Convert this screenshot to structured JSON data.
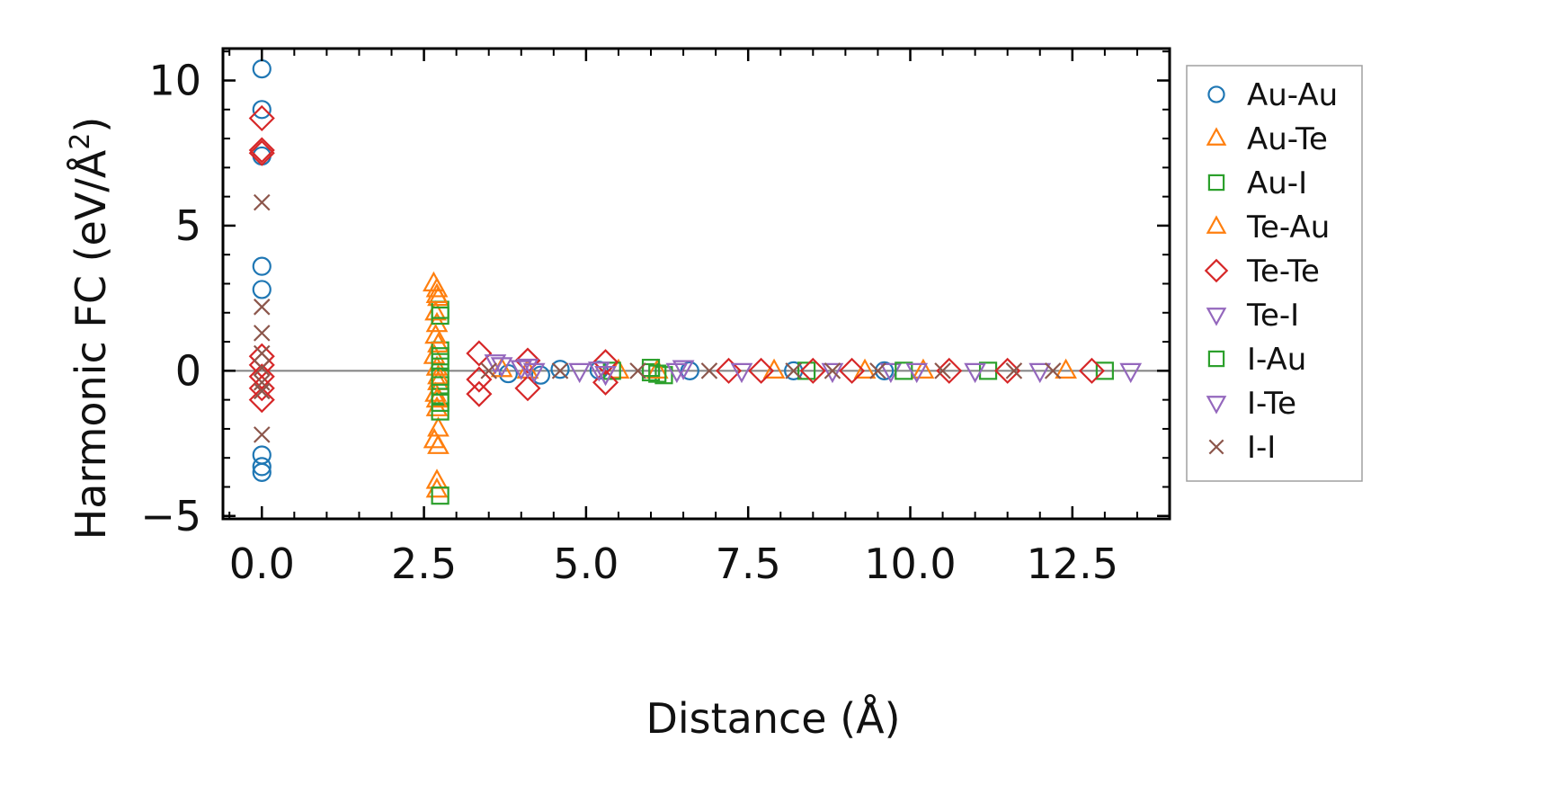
{
  "chart_data": {
    "type": "scatter",
    "xlabel": "Distance (Å)",
    "ylabel_main": "Harmonic FC (eV/Å",
    "ylabel_sup": "2",
    "ylabel_tail": ")",
    "xlim": [
      -0.6,
      14.0
    ],
    "ylim": [
      -5.1,
      11.1
    ],
    "xticks": [
      0.0,
      2.5,
      5.0,
      7.5,
      10.0,
      12.5
    ],
    "xtick_labels": [
      "0.0",
      "2.5",
      "5.0",
      "7.5",
      "10.0",
      "12.5"
    ],
    "yticks": [
      -5,
      0,
      5,
      10
    ],
    "ytick_labels": [
      "−5",
      "0",
      "5",
      "10"
    ],
    "zero_line": 0,
    "legend_position": "outside-right",
    "series": [
      {
        "name": "Au-Au",
        "marker": "circle",
        "color": "#1f77b4",
        "points": [
          [
            0,
            10.4
          ],
          [
            0,
            9.0
          ],
          [
            0,
            7.4
          ],
          [
            0,
            3.6
          ],
          [
            0,
            2.8
          ],
          [
            0,
            -2.9
          ],
          [
            0,
            -3.3
          ],
          [
            0,
            -3.5
          ],
          [
            3.8,
            -0.1
          ],
          [
            4.3,
            -0.15
          ],
          [
            4.6,
            0.05
          ],
          [
            5.2,
            0.02
          ],
          [
            6.6,
            0.0
          ],
          [
            8.2,
            0.0
          ],
          [
            9.6,
            0.0
          ]
        ]
      },
      {
        "name": "Au-Te",
        "marker": "triangle-up",
        "color": "#ff7f0e",
        "points": [
          [
            2.65,
            3.0
          ],
          [
            2.7,
            2.8
          ],
          [
            2.72,
            2.5
          ],
          [
            2.68,
            2.0
          ],
          [
            2.7,
            1.6
          ],
          [
            2.72,
            0.9
          ],
          [
            2.66,
            0.5
          ],
          [
            2.7,
            0.1
          ],
          [
            2.72,
            -0.4
          ],
          [
            2.68,
            -0.8
          ],
          [
            2.7,
            -1.3
          ],
          [
            2.72,
            -2.0
          ],
          [
            2.66,
            -2.4
          ],
          [
            2.7,
            -3.8
          ],
          [
            2.7,
            -4.1
          ],
          [
            4.1,
            0.0
          ],
          [
            5.5,
            0.0
          ],
          [
            7.9,
            0.0
          ],
          [
            9.3,
            0.0
          ],
          [
            12.4,
            0.0
          ]
        ]
      },
      {
        "name": "Au-I",
        "marker": "square",
        "color": "#2ca02c",
        "points": [
          [
            2.75,
            2.1
          ],
          [
            2.75,
            1.9
          ],
          [
            2.75,
            0.7
          ],
          [
            2.75,
            0.3
          ],
          [
            2.75,
            -0.5
          ],
          [
            2.75,
            -0.9
          ],
          [
            2.75,
            -1.4
          ],
          [
            2.75,
            -4.3
          ],
          [
            5.4,
            0.0
          ],
          [
            6.0,
            -0.05
          ],
          [
            6.2,
            -0.15
          ],
          [
            8.4,
            0.0
          ],
          [
            11.2,
            0.0
          ],
          [
            13.0,
            0.0
          ]
        ]
      },
      {
        "name": "Te-Au",
        "marker": "triangle-up",
        "color": "#ff7f0e",
        "points": [
          [
            2.7,
            2.6
          ],
          [
            2.68,
            1.2
          ],
          [
            2.72,
            -0.2
          ],
          [
            2.7,
            -1.0
          ],
          [
            2.72,
            -2.6
          ],
          [
            3.7,
            0.05
          ],
          [
            6.1,
            0.0
          ],
          [
            10.2,
            0.0
          ]
        ]
      },
      {
        "name": "Te-Te",
        "marker": "diamond",
        "color": "#d62728",
        "points": [
          [
            0,
            8.7
          ],
          [
            0,
            7.6
          ],
          [
            0,
            7.5
          ],
          [
            0,
            0.5
          ],
          [
            0,
            0.2
          ],
          [
            0,
            -0.2
          ],
          [
            0,
            -0.6
          ],
          [
            0,
            -1.0
          ],
          [
            3.35,
            0.6
          ],
          [
            3.35,
            -0.3
          ],
          [
            3.35,
            -0.8
          ],
          [
            4.1,
            0.35
          ],
          [
            4.1,
            -0.6
          ],
          [
            5.3,
            0.3
          ],
          [
            5.3,
            -0.4
          ],
          [
            7.2,
            0.0
          ],
          [
            7.7,
            0.0
          ],
          [
            8.5,
            0.0
          ],
          [
            9.1,
            0.0
          ],
          [
            10.6,
            0.0
          ],
          [
            11.5,
            0.0
          ],
          [
            12.8,
            0.0
          ]
        ]
      },
      {
        "name": "Te-I",
        "marker": "triangle-down",
        "color": "#9467bd",
        "points": [
          [
            3.6,
            0.3
          ],
          [
            4.0,
            0.1
          ],
          [
            4.1,
            0.15
          ],
          [
            5.2,
            0.05
          ],
          [
            5.3,
            -0.1
          ],
          [
            6.5,
            0.1
          ],
          [
            8.8,
            0.0
          ],
          [
            9.7,
            0.0
          ],
          [
            11.0,
            0.0
          ],
          [
            13.4,
            0.0
          ]
        ]
      },
      {
        "name": "I-Au",
        "marker": "square",
        "color": "#2ca02c",
        "points": [
          [
            2.75,
            0.5
          ],
          [
            2.75,
            -0.2
          ],
          [
            2.75,
            -1.1
          ],
          [
            6.0,
            0.1
          ],
          [
            6.1,
            -0.1
          ],
          [
            9.9,
            0.0
          ]
        ]
      },
      {
        "name": "I-Te",
        "marker": "triangle-down",
        "color": "#9467bd",
        "points": [
          [
            3.7,
            0.2
          ],
          [
            4.2,
            0.0
          ],
          [
            4.9,
            0.0
          ],
          [
            6.4,
            0.0
          ],
          [
            7.4,
            0.0
          ],
          [
            10.1,
            0.0
          ],
          [
            12.0,
            0.0
          ]
        ]
      },
      {
        "name": "I-I",
        "marker": "x",
        "color": "#8c564b",
        "points": [
          [
            0,
            5.8
          ],
          [
            0,
            2.2
          ],
          [
            0,
            1.3
          ],
          [
            0,
            0.6
          ],
          [
            0,
            0.1
          ],
          [
            0,
            -0.4
          ],
          [
            0,
            -0.7
          ],
          [
            0,
            -2.2
          ],
          [
            3.5,
            0.0
          ],
          [
            4.6,
            0.0
          ],
          [
            5.8,
            0.0
          ],
          [
            6.9,
            0.0
          ],
          [
            8.2,
            0.0
          ],
          [
            8.8,
            0.0
          ],
          [
            9.5,
            0.0
          ],
          [
            10.5,
            0.0
          ],
          [
            11.6,
            0.0
          ],
          [
            12.2,
            0.0
          ]
        ]
      }
    ]
  }
}
